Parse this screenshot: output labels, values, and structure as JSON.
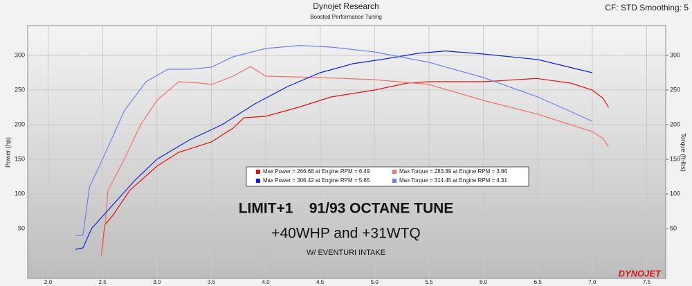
{
  "chart_data": {
    "type": "line",
    "title": "Dynojet Research",
    "subtitle": "Boosted Performance Tuning",
    "settings_label": "CF: STD Smoothing: 5",
    "y_label": "Power (hp)",
    "y2_label": "Torque (ft-lbs)",
    "annotations": [
      "LIMIT+1    91/93 OCTANE TUNE",
      "+40WHP and +31WTQ",
      "W/ EVENTURI INTAKE"
    ],
    "logo": "DYNOJET",
    "xlim": [
      1.8125,
      7.675
    ],
    "xticks": [
      {
        "value": 2,
        "label": "2.0"
      },
      2.5,
      {
        "value": 3,
        "label": "3.0"
      },
      3.5,
      {
        "value": 4,
        "label": "4.0"
      },
      4.5,
      {
        "value": 5,
        "label": "5.0"
      },
      5.5,
      {
        "value": 6,
        "label": "6.0"
      },
      6.5,
      {
        "value": 7,
        "label": "7.0"
      },
      7.5
    ],
    "ylim": [
      -22,
      343
    ],
    "yticks": [
      50,
      100,
      150,
      200,
      250,
      300
    ],
    "y2lim": [
      -22,
      343
    ],
    "y2ticks": [
      50,
      100,
      150,
      200,
      250,
      300
    ],
    "grid": true,
    "series": [
      {
        "name": "Max Power = 266.68 at Engine RPM = 6.49",
        "color": "#e01010",
        "x": [
          2.49,
          2.52,
          2.6,
          2.75,
          3.0,
          3.2,
          3.5,
          3.7,
          3.8,
          4.0,
          4.3,
          4.6,
          5.0,
          5.3,
          5.5,
          6.0,
          6.49,
          6.8,
          7.0,
          7.1,
          7.15
        ],
        "values": [
          12,
          55,
          70,
          105,
          140,
          160,
          175,
          195,
          210,
          212,
          225,
          240,
          250,
          260,
          262,
          262,
          266.68,
          260,
          250,
          238,
          225
        ]
      },
      {
        "name": "Max Torque = 283.89 at Engine RPM = 3.86",
        "color": "#f07070",
        "x": [
          2.49,
          2.52,
          2.55,
          2.7,
          2.85,
          3.0,
          3.2,
          3.4,
          3.5,
          3.7,
          3.86,
          4.0,
          4.5,
          5.0,
          5.5,
          6.0,
          6.5,
          7.0,
          7.1,
          7.15
        ],
        "values": [
          10,
          50,
          105,
          150,
          200,
          235,
          262,
          260,
          258,
          270,
          283.89,
          270,
          268,
          265,
          258,
          235,
          215,
          190,
          180,
          168
        ]
      },
      {
        "name": "Max Power = 306.42 at Engine RPM = 5.65",
        "color": "#1020e0",
        "x": [
          2.25,
          2.32,
          2.4,
          2.6,
          2.8,
          3.0,
          3.3,
          3.6,
          3.9,
          4.2,
          4.5,
          4.8,
          5.1,
          5.4,
          5.65,
          6.0,
          6.5,
          7.0
        ],
        "values": [
          20,
          22,
          50,
          85,
          120,
          150,
          178,
          200,
          230,
          255,
          275,
          288,
          295,
          303,
          306.42,
          302,
          294,
          275
        ]
      },
      {
        "name": "Max Torque = 314.45 at Engine RPM = 4.31",
        "color": "#7080f0",
        "axis": "y2",
        "x": [
          2.25,
          2.32,
          2.38,
          2.5,
          2.7,
          2.9,
          3.1,
          3.3,
          3.5,
          3.7,
          4.0,
          4.31,
          4.6,
          5.0,
          5.5,
          6.0,
          6.5,
          7.0
        ],
        "values": [
          40,
          40,
          110,
          150,
          220,
          262,
          280,
          280,
          283,
          298,
          310,
          314.45,
          312,
          305,
          290,
          268,
          240,
          205
        ]
      }
    ]
  }
}
